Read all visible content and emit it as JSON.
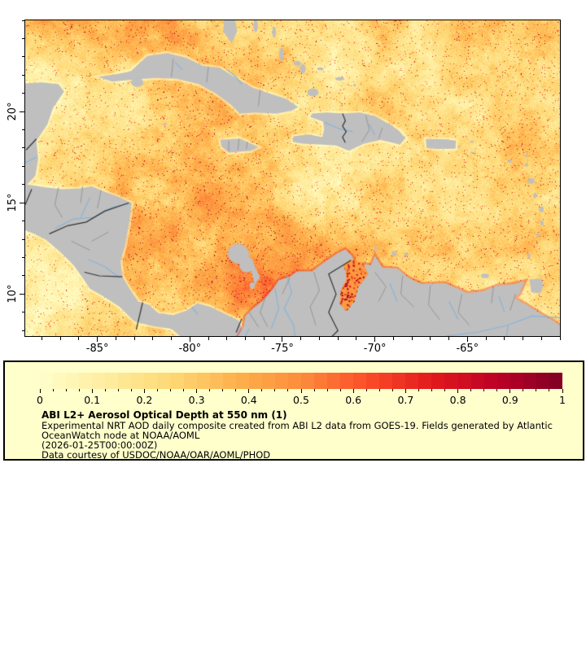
{
  "map": {
    "x_axis": {
      "ticks": [
        {
          "label": "-85°",
          "lon": -85
        },
        {
          "label": "-80°",
          "lon": -80
        },
        {
          "label": "-75°",
          "lon": -75
        },
        {
          "label": "-70°",
          "lon": -70
        },
        {
          "label": "-65°",
          "lon": -65
        }
      ],
      "minor_step_deg": 1
    },
    "y_axis": {
      "ticks": [
        {
          "label": "20°",
          "lat": 20
        },
        {
          "label": "15°",
          "lat": 15
        },
        {
          "label": "10°",
          "lat": 10
        }
      ],
      "minor_step_deg": 1
    },
    "extent": {
      "lon_min": -88.9,
      "lon_max": -60.0,
      "lat_min": 7.7,
      "lat_max": 25.0
    },
    "colors": {
      "land": "#BFBFBF",
      "river": "#8AB4D8",
      "border_minor": "#969696",
      "border_major": "#333333",
      "frame": "#000000",
      "coast_halo": "#FFFFCC"
    }
  },
  "legend": {
    "background": "#FFFFCC",
    "border_color": "#000000",
    "colorbar": {
      "min": 0,
      "max": 1,
      "segments": 40,
      "ticks": [
        {
          "label": "0",
          "value": 0
        },
        {
          "label": "0.1",
          "value": 0.1
        },
        {
          "label": "0.2",
          "value": 0.2
        },
        {
          "label": "0.3",
          "value": 0.3
        },
        {
          "label": "0.4",
          "value": 0.4
        },
        {
          "label": "0.5",
          "value": 0.5
        },
        {
          "label": "0.6",
          "value": 0.6
        },
        {
          "label": "0.7",
          "value": 0.7
        },
        {
          "label": "0.8",
          "value": 0.8
        },
        {
          "label": "0.9",
          "value": 0.9
        },
        {
          "label": "1",
          "value": 1
        }
      ],
      "minor_tick_step": 0.025,
      "colormap_stops": [
        "#FFFFCC",
        "#FFEDA0",
        "#FED976",
        "#FEB24C",
        "#FD8D3C",
        "#FC4E2A",
        "#E31A1C",
        "#BD0026",
        "#800026"
      ]
    },
    "title": "ABI L2+ Aerosol Optical Depth at 550 nm (1)",
    "lines": [
      "Experimental NRT AOD daily composite created from ABI L2 data from GOES-19. Fields generated by Atlantic",
      "OceanWatch node at NOAA/AOML",
      "(2026-01-25T00:00:00Z)",
      "Data courtesy of USDOC/NOAA/OAR/AOML/PHOD"
    ]
  }
}
